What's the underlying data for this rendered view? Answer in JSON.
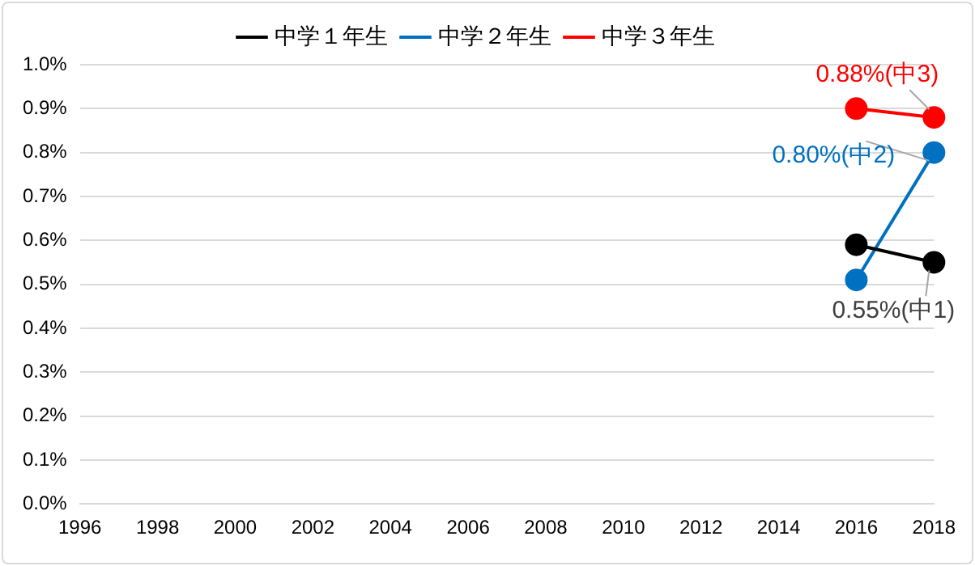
{
  "chart_data": {
    "type": "line",
    "categories": [
      "1996",
      "1998",
      "2000",
      "2002",
      "2004",
      "2006",
      "2008",
      "2010",
      "2012",
      "2014",
      "2016",
      "2018"
    ],
    "series": [
      {
        "name": "中学１年生",
        "color": "#000000",
        "values": [
          null,
          null,
          null,
          null,
          null,
          null,
          null,
          null,
          null,
          null,
          0.59,
          0.55
        ],
        "value_labels": [
          null,
          null,
          null,
          null,
          null,
          null,
          null,
          null,
          null,
          null,
          null,
          "0.55%(中1)"
        ]
      },
      {
        "name": "中学２年生",
        "color": "#0070c0",
        "values": [
          null,
          null,
          null,
          null,
          null,
          null,
          null,
          null,
          null,
          null,
          0.51,
          0.8
        ],
        "value_labels": [
          null,
          null,
          null,
          null,
          null,
          null,
          null,
          null,
          null,
          null,
          null,
          "0.80%(中2)"
        ]
      },
      {
        "name": "中学３年生",
        "color": "#ff0000",
        "values": [
          null,
          null,
          null,
          null,
          null,
          null,
          null,
          null,
          null,
          null,
          0.9,
          0.88
        ],
        "value_labels": [
          null,
          null,
          null,
          null,
          null,
          null,
          null,
          null,
          null,
          null,
          null,
          "0.88%(中3)"
        ]
      }
    ],
    "ylim": [
      0,
      1
    ],
    "yticks": [
      {
        "value": 0,
        "label": "0.0%"
      },
      {
        "value": 0.1,
        "label": "0.1%"
      },
      {
        "value": 0.2,
        "label": "0.2%"
      },
      {
        "value": 0.3,
        "label": "0.3%"
      },
      {
        "value": 0.4,
        "label": "0.4%"
      },
      {
        "value": 0.5,
        "label": "0.5%"
      },
      {
        "value": 0.6,
        "label": "0.6%"
      },
      {
        "value": 0.7,
        "label": "0.7%"
      },
      {
        "value": 0.8,
        "label": "0.8%"
      },
      {
        "value": 0.9,
        "label": "0.9%"
      },
      {
        "value": 1,
        "label": "1.0%"
      }
    ],
    "grid": "y",
    "legend": "top",
    "marker": "circle",
    "line_style": "solid"
  }
}
